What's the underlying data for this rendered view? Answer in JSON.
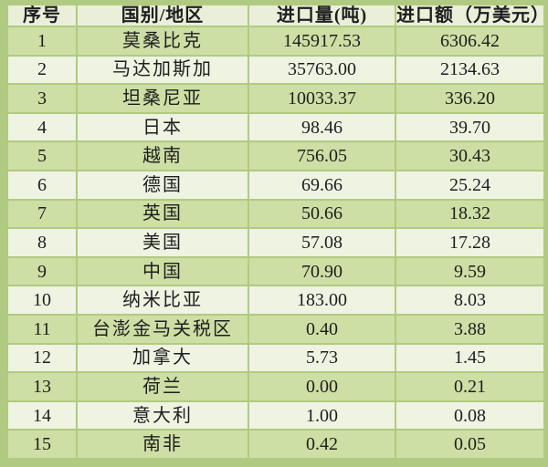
{
  "table": {
    "columns": {
      "index": "序号",
      "country": "国别/地区",
      "volume": "进口量(吨)",
      "value": "进口额（万美元）"
    },
    "rows": [
      {
        "index": "1",
        "country": "莫桑比克",
        "volume": "145917.53",
        "value": "6306.42"
      },
      {
        "index": "2",
        "country": "马达加斯加",
        "volume": "35763.00",
        "value": "2134.63"
      },
      {
        "index": "3",
        "country": "坦桑尼亚",
        "volume": "10033.37",
        "value": "336.20"
      },
      {
        "index": "4",
        "country": "日本",
        "volume": "98.46",
        "value": "39.70"
      },
      {
        "index": "5",
        "country": "越南",
        "volume": "756.05",
        "value": "30.43"
      },
      {
        "index": "6",
        "country": "德国",
        "volume": "69.66",
        "value": "25.24"
      },
      {
        "index": "7",
        "country": "英国",
        "volume": "50.66",
        "value": "18.32"
      },
      {
        "index": "8",
        "country": "美国",
        "volume": "57.08",
        "value": "17.28"
      },
      {
        "index": "9",
        "country": "中国",
        "volume": "70.90",
        "value": "9.59"
      },
      {
        "index": "10",
        "country": "纳米比亚",
        "volume": "183.00",
        "value": "8.03"
      },
      {
        "index": "11",
        "country": "台澎金马关税区",
        "volume": "0.40",
        "value": "3.88"
      },
      {
        "index": "12",
        "country": "加拿大",
        "volume": "5.73",
        "value": "1.45"
      },
      {
        "index": "13",
        "country": "荷兰",
        "volume": "0.00",
        "value": "0.21"
      },
      {
        "index": "14",
        "country": "意大利",
        "volume": "1.00",
        "value": "0.08"
      },
      {
        "index": "15",
        "country": "南非",
        "volume": "0.42",
        "value": "0.05"
      }
    ]
  },
  "colors": {
    "border_green": "#b1ca81",
    "header_bg": "#e9efd9",
    "row_odd_bg": "#cddfa4",
    "row_even_bg": "#eef3e2",
    "text": "#1e1e1e"
  },
  "chart_data": {
    "type": "table",
    "title": "",
    "columns": [
      "序号",
      "国别/地区",
      "进口量(吨)",
      "进口额（万美元）"
    ],
    "rows": [
      [
        "1",
        "莫桑比克",
        145917.53,
        6306.42
      ],
      [
        "2",
        "马达加斯加",
        35763.0,
        2134.63
      ],
      [
        "3",
        "坦桑尼亚",
        10033.37,
        336.2
      ],
      [
        "4",
        "日本",
        98.46,
        39.7
      ],
      [
        "5",
        "越南",
        756.05,
        30.43
      ],
      [
        "6",
        "德国",
        69.66,
        25.24
      ],
      [
        "7",
        "英国",
        50.66,
        18.32
      ],
      [
        "8",
        "美国",
        57.08,
        17.28
      ],
      [
        "9",
        "中国",
        70.9,
        9.59
      ],
      [
        "10",
        "纳米比亚",
        183.0,
        8.03
      ],
      [
        "11",
        "台澎金马关税区",
        0.4,
        3.88
      ],
      [
        "12",
        "加拿大",
        5.73,
        1.45
      ],
      [
        "13",
        "荷兰",
        0.0,
        0.21
      ],
      [
        "14",
        "意大利",
        1.0,
        0.08
      ],
      [
        "15",
        "南非",
        0.42,
        0.05
      ]
    ]
  }
}
